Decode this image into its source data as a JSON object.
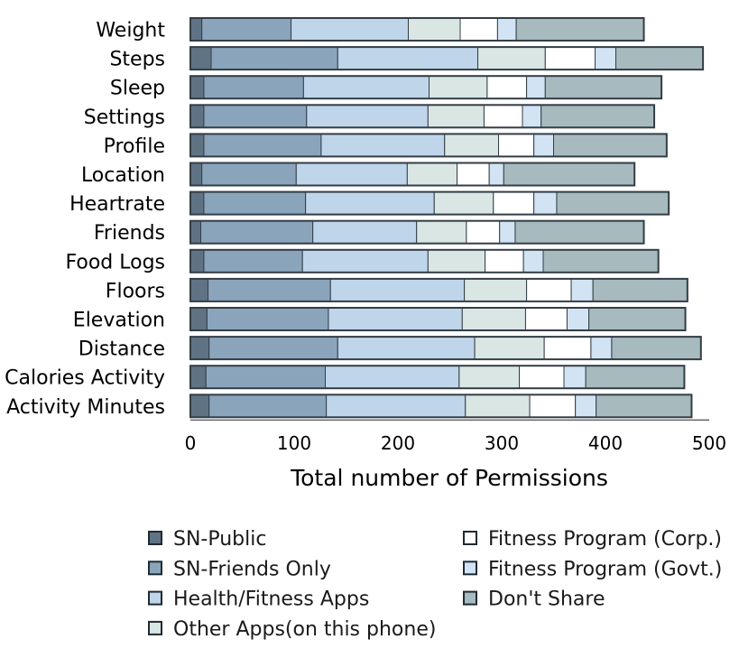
{
  "chart_data": {
    "type": "bar",
    "orientation": "horizontal",
    "stacked": true,
    "xlabel": "Total number of Permissions",
    "xlim": [
      0,
      500
    ],
    "xticks": [
      "0",
      "100",
      "200",
      "300",
      "400",
      "500"
    ],
    "legend_placement": "bottom",
    "categories": [
      "Weight",
      "Steps",
      "Sleep",
      "Settings",
      "Profile",
      "Location",
      "Heartrate",
      "Friends",
      "Food Logs",
      "Floors",
      "Elevation",
      "Distance",
      "Calories Activity",
      "Activity Minutes"
    ],
    "series": [
      {
        "name": "SN-Public",
        "color": "#5f7384",
        "values": [
          11,
          20,
          13,
          13,
          13,
          11,
          13,
          10,
          13,
          17,
          16,
          18,
          15,
          18
        ]
      },
      {
        "name": "SN-Friends Only",
        "color": "#8aa4bc",
        "values": [
          86,
          122,
          96,
          99,
          113,
          91,
          98,
          108,
          95,
          118,
          117,
          124,
          115,
          113
        ]
      },
      {
        "name": "Health/Fitness Apps",
        "color": "#bed5ea",
        "values": [
          113,
          135,
          121,
          117,
          119,
          107,
          124,
          100,
          121,
          129,
          129,
          132,
          129,
          134
        ]
      },
      {
        "name": "Other Apps(on this phone)",
        "color": "#d9e6e4",
        "values": [
          50,
          65,
          56,
          54,
          52,
          48,
          57,
          48,
          55,
          60,
          61,
          67,
          58,
          62
        ]
      },
      {
        "name": "Fitness Program (Corp.)",
        "color": "#ffffff",
        "values": [
          36,
          48,
          38,
          37,
          34,
          31,
          39,
          32,
          37,
          43,
          40,
          45,
          43,
          44
        ]
      },
      {
        "name": "Fitness Program (Govt.)",
        "color": "#d2e3f3",
        "values": [
          18,
          20,
          18,
          18,
          19,
          14,
          22,
          15,
          19,
          21,
          21,
          20,
          21,
          20
        ]
      },
      {
        "name": "Don't Share",
        "color": "#a7babe",
        "values": [
          123,
          84,
          112,
          109,
          109,
          126,
          108,
          124,
          111,
          91,
          93,
          86,
          95,
          92
        ]
      }
    ]
  }
}
